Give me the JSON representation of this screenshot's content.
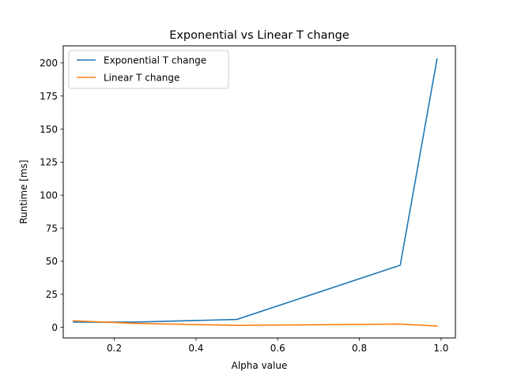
{
  "chart_data": {
    "type": "line",
    "title": "Exponential vs Linear T change",
    "xlabel": "Alpha value",
    "ylabel": "Runtime [ms]",
    "xlim": [
      0.075,
      1.035
    ],
    "ylim": [
      -8,
      213
    ],
    "xticks": [
      0.2,
      0.4,
      0.6,
      0.8,
      1.0
    ],
    "xtick_labels": [
      "0.2",
      "0.4",
      "0.6",
      "0.8",
      "1.0"
    ],
    "yticks": [
      0,
      25,
      50,
      75,
      100,
      125,
      150,
      175,
      200
    ],
    "ytick_labels": [
      "0",
      "25",
      "50",
      "75",
      "100",
      "125",
      "150",
      "175",
      "200"
    ],
    "grid": false,
    "legend_position": "top-left",
    "series": [
      {
        "name": "Exponential T change",
        "color": "#1f77b4",
        "x": [
          0.1,
          0.25,
          0.5,
          0.9,
          0.99
        ],
        "y": [
          4,
          4,
          6,
          47,
          203
        ]
      },
      {
        "name": "Linear T change",
        "color": "#ff7f0e",
        "x": [
          0.1,
          0.25,
          0.5,
          0.9,
          0.99
        ],
        "y": [
          5,
          3,
          1.5,
          2.5,
          1
        ]
      }
    ]
  }
}
